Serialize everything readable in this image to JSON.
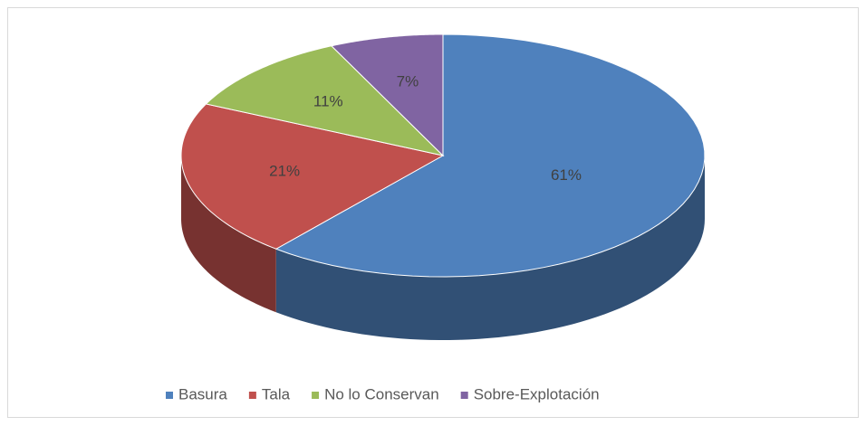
{
  "chart_data": {
    "type": "pie",
    "3d": true,
    "categories": [
      "Basura",
      "Tala",
      "No lo Conservan",
      "Sobre-Explotación"
    ],
    "values": [
      61,
      21,
      11,
      7
    ],
    "value_labels": [
      "61%",
      "21%",
      "11%",
      "7%"
    ],
    "colors": [
      "#4f81bd",
      "#c0504d",
      "#9bbb59",
      "#8064a2"
    ],
    "legend": "bottom"
  }
}
